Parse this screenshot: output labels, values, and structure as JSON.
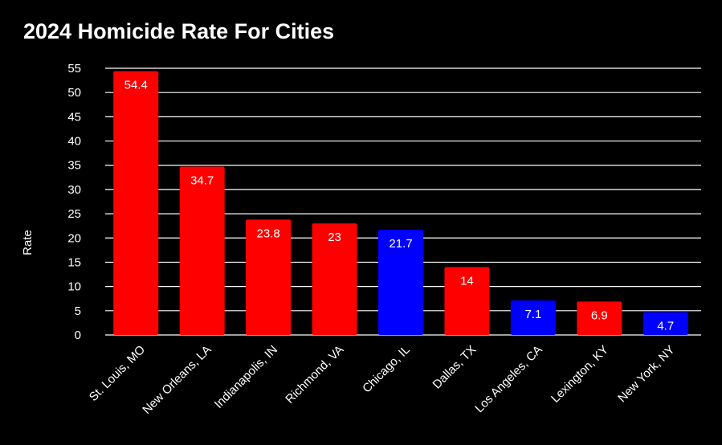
{
  "chart_data": {
    "type": "bar",
    "title": "2024 Homicide Rate For Cities",
    "xlabel": "",
    "ylabel": "Rate",
    "categories": [
      "St. Louis, MO",
      "New Orleans, LA",
      "Indianapolis, IN",
      "Richmond, VA",
      "Chicago, IL",
      "Dallas, TX",
      "Los Angeles, CA",
      "Lexington, KY",
      "New York, NY"
    ],
    "values": [
      54.4,
      34.7,
      23.8,
      23,
      21.7,
      14,
      7.1,
      6.9,
      4.7
    ],
    "value_labels": [
      "54.4",
      "34.7",
      "23.8",
      "23",
      "21.7",
      "14",
      "7.1",
      "6.9",
      "4.7"
    ],
    "bar_colors": [
      "#ff0000",
      "#ff0000",
      "#ff0000",
      "#ff0000",
      "#0000ff",
      "#ff0000",
      "#0000ff",
      "#ff0000",
      "#0000ff"
    ],
    "ylim": [
      0,
      55
    ],
    "yticks": [
      0,
      5,
      10,
      15,
      20,
      25,
      30,
      35,
      40,
      45,
      50,
      55
    ],
    "grid": true,
    "legend": "none",
    "background": "#000000",
    "gridline_color": "#ffffff",
    "text_color": "#ffffff"
  }
}
